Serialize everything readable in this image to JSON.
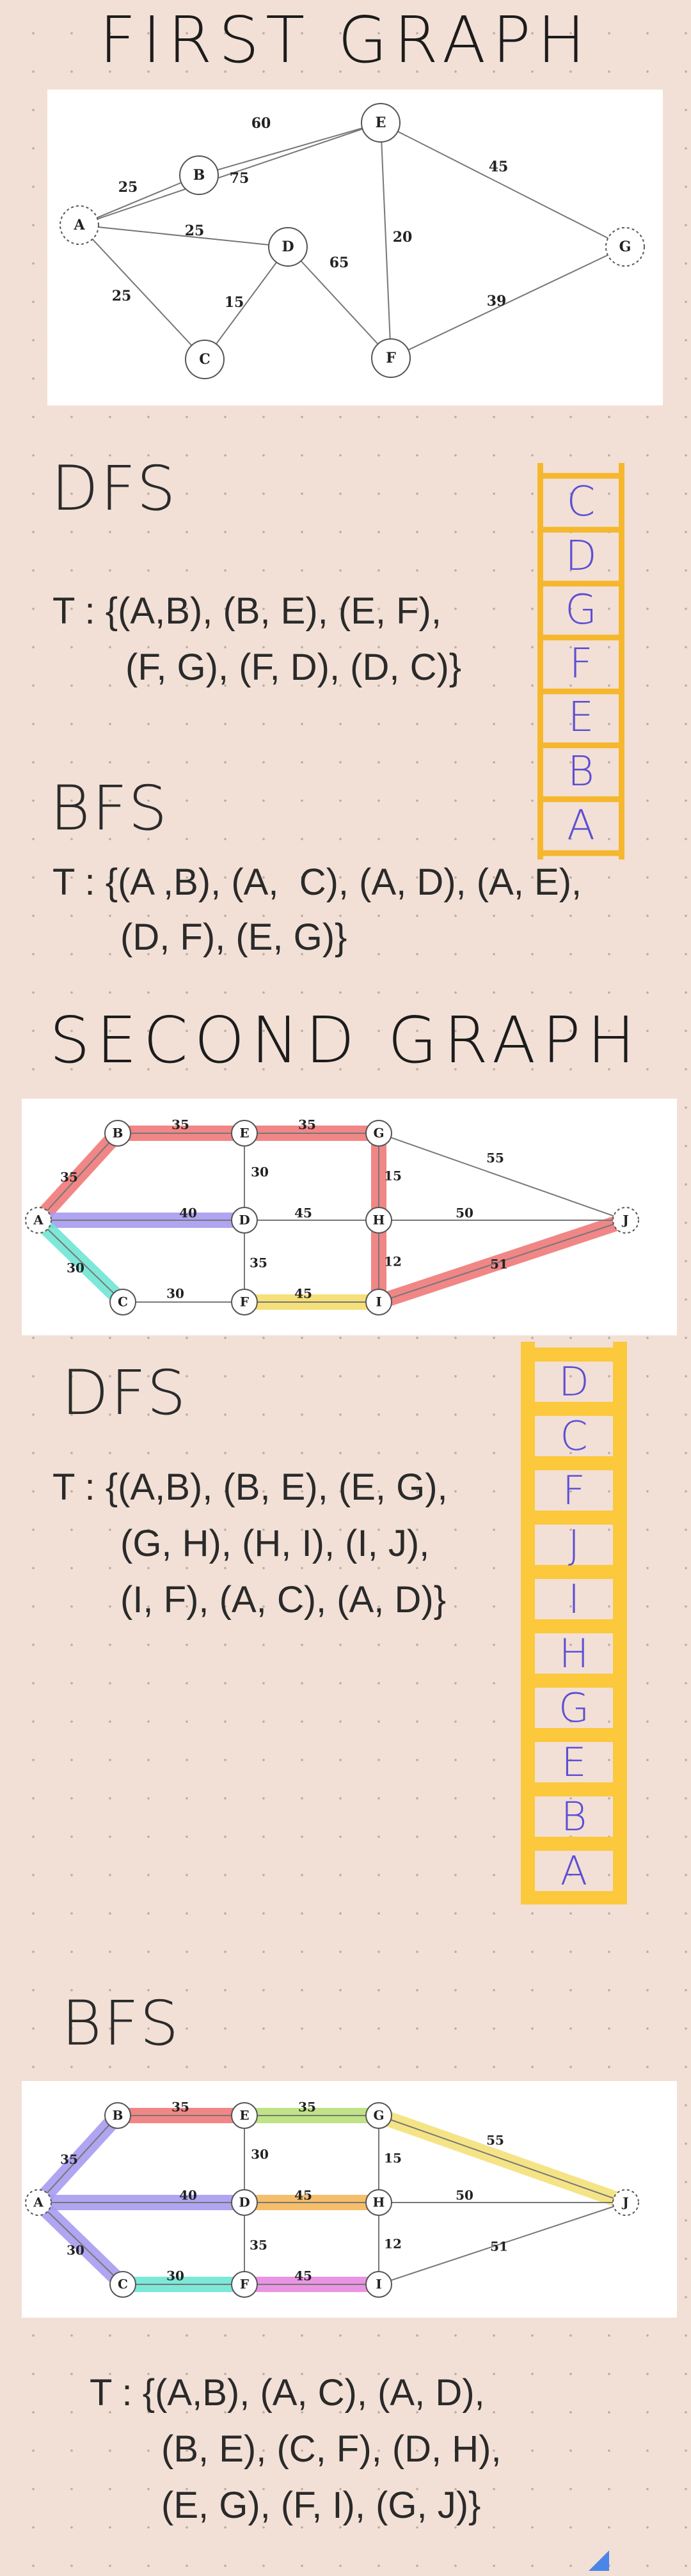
{
  "headings": {
    "first_graph": "FIRST GRAPH",
    "second_graph": "SECOND GRAPH"
  },
  "first_graph": {
    "nodes": [
      "A",
      "B",
      "C",
      "D",
      "E",
      "F",
      "G"
    ],
    "edges": [
      {
        "from": "A",
        "to": "B",
        "weight": "25"
      },
      {
        "from": "A",
        "to": "E",
        "weight": "75"
      },
      {
        "from": "A",
        "to": "D",
        "weight": "25"
      },
      {
        "from": "A",
        "to": "C",
        "weight": "25"
      },
      {
        "from": "B",
        "to": "E",
        "weight": "60"
      },
      {
        "from": "C",
        "to": "D",
        "weight": "15"
      },
      {
        "from": "D",
        "to": "F",
        "weight": "65"
      },
      {
        "from": "E",
        "to": "F",
        "weight": "20"
      },
      {
        "from": "E",
        "to": "G",
        "weight": "45"
      },
      {
        "from": "F",
        "to": "G",
        "weight": "39"
      }
    ],
    "dfs": {
      "title": "DFS",
      "t_line1": "T : {(A,B), (B, E), (E, F),",
      "t_line2": "(F, G), (F, D), (D, C)}",
      "stack": [
        "C",
        "D",
        "G",
        "F",
        "E",
        "B",
        "A"
      ],
      "stack_color": "#f5b72e"
    },
    "bfs": {
      "title": "BFS",
      "t_line1": "T : {(A ,B), (A,  C), (A, D), (A, E),",
      "t_line2": "(D, F), (E, G)}"
    }
  },
  "second_graph": {
    "nodes": [
      "A",
      "B",
      "C",
      "D",
      "E",
      "F",
      "G",
      "H",
      "I",
      "J"
    ],
    "edges": [
      {
        "from": "A",
        "to": "B",
        "weight": "35"
      },
      {
        "from": "A",
        "to": "D",
        "weight": "40"
      },
      {
        "from": "A",
        "to": "C",
        "weight": "30"
      },
      {
        "from": "B",
        "to": "E",
        "weight": "35"
      },
      {
        "from": "E",
        "to": "G",
        "weight": "35"
      },
      {
        "from": "E",
        "to": "D",
        "weight": "30"
      },
      {
        "from": "D",
        "to": "H",
        "weight": "45"
      },
      {
        "from": "D",
        "to": "F",
        "weight": "35"
      },
      {
        "from": "C",
        "to": "F",
        "weight": "30"
      },
      {
        "from": "F",
        "to": "I",
        "weight": "45"
      },
      {
        "from": "G",
        "to": "H",
        "weight": "15"
      },
      {
        "from": "H",
        "to": "I",
        "weight": "12"
      },
      {
        "from": "G",
        "to": "J",
        "weight": "55"
      },
      {
        "from": "H",
        "to": "J",
        "weight": "50"
      },
      {
        "from": "I",
        "to": "J",
        "weight": "51"
      }
    ],
    "dfs_highlight": [
      {
        "edge": "A-B",
        "color": "#f07a7a"
      },
      {
        "edge": "B-E",
        "color": "#f07a7a"
      },
      {
        "edge": "E-G",
        "color": "#f07a7a"
      },
      {
        "edge": "G-H",
        "color": "#f07a7a"
      },
      {
        "edge": "H-I",
        "color": "#f07a7a"
      },
      {
        "edge": "I-J",
        "color": "#f07a7a"
      },
      {
        "edge": "A-D",
        "color": "#a79cf0"
      },
      {
        "edge": "A-C",
        "color": "#6fe6d4"
      },
      {
        "edge": "F-I",
        "color": "#f5dc6a"
      }
    ],
    "bfs_highlight": [
      {
        "edge": "A-B",
        "color": "#a79cf0"
      },
      {
        "edge": "A-D",
        "color": "#a79cf0"
      },
      {
        "edge": "A-C",
        "color": "#a79cf0"
      },
      {
        "edge": "B-E",
        "color": "#f07a7a"
      },
      {
        "edge": "E-G",
        "color": "#b9e07a"
      },
      {
        "edge": "D-H",
        "color": "#f5b75a"
      },
      {
        "edge": "C-F",
        "color": "#6fe6d4"
      },
      {
        "edge": "F-I",
        "color": "#e88ae0"
      },
      {
        "edge": "G-J",
        "color": "#f5e27a"
      }
    ],
    "dfs": {
      "title": "DFS",
      "t_line1": "T : {(A,B), (B, E), (E, G),",
      "t_line2": "(G, H), (H, I), (I, J),",
      "t_line3": "(I, F), (A, C), (A, D)}",
      "stack": [
        "D",
        "C",
        "F",
        "J",
        "I",
        "H",
        "G",
        "E",
        "B",
        "A"
      ],
      "stack_color": "#fcc83c"
    },
    "bfs": {
      "title": "BFS",
      "t_line1": "T : {(A,B), (A, C), (A, D),",
      "t_line2": "(B, E), (C, F), (D, H),",
      "t_line3": "(E, G), (F, I), (G, J)}"
    }
  }
}
